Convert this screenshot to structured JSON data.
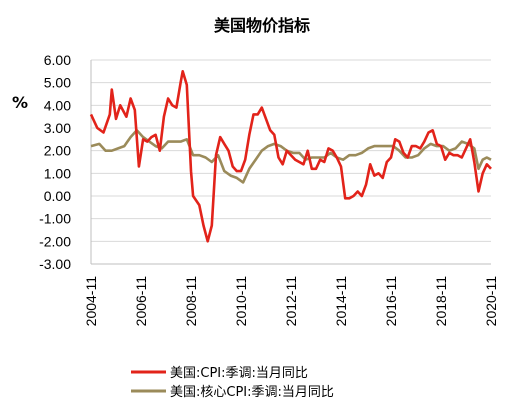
{
  "chart_data": {
    "type": "line",
    "title": "美国物价指标",
    "ylabel": "%",
    "xlabel": "",
    "ylim": [
      -3.0,
      6.0
    ],
    "ytick_labels": [
      "6.00",
      "5.00",
      "4.00",
      "3.00",
      "2.00",
      "1.00",
      "0.00",
      "-1.00",
      "-2.00",
      "-3.00"
    ],
    "ytick_values": [
      6,
      5,
      4,
      3,
      2,
      1,
      0,
      -1,
      -2,
      -3
    ],
    "x_range": [
      "2004-11",
      "2020-11"
    ],
    "xtick_labels": [
      "2004-11",
      "2006-11",
      "2008-11",
      "2010-11",
      "2012-11",
      "2014-11",
      "2016-11",
      "2018-11",
      "2020-11"
    ],
    "grid": "horizontal",
    "legend_position": "bottom",
    "series": [
      {
        "name": "美国:CPI:季调:当月同比",
        "color": "#E2231A",
        "x": [
          "2004-11",
          "2005-02",
          "2005-05",
          "2005-08",
          "2005-09",
          "2005-11",
          "2006-01",
          "2006-04",
          "2006-06",
          "2006-08",
          "2006-10",
          "2006-12",
          "2007-02",
          "2007-04",
          "2007-06",
          "2007-08",
          "2007-10",
          "2007-12",
          "2008-02",
          "2008-04",
          "2008-06",
          "2008-07",
          "2008-09",
          "2008-11",
          "2008-12",
          "2009-03",
          "2009-05",
          "2009-07",
          "2009-09",
          "2009-11",
          "2010-01",
          "2010-03",
          "2010-05",
          "2010-07",
          "2010-09",
          "2010-11",
          "2011-01",
          "2011-03",
          "2011-05",
          "2011-07",
          "2011-09",
          "2011-11",
          "2012-01",
          "2012-03",
          "2012-05",
          "2012-07",
          "2012-09",
          "2012-11",
          "2013-01",
          "2013-03",
          "2013-05",
          "2013-07",
          "2013-09",
          "2013-11",
          "2014-01",
          "2014-03",
          "2014-05",
          "2014-07",
          "2014-09",
          "2014-11",
          "2015-01",
          "2015-03",
          "2015-05",
          "2015-07",
          "2015-09",
          "2015-11",
          "2016-01",
          "2016-03",
          "2016-05",
          "2016-07",
          "2016-09",
          "2016-11",
          "2017-01",
          "2017-03",
          "2017-05",
          "2017-07",
          "2017-09",
          "2017-11",
          "2018-01",
          "2018-03",
          "2018-05",
          "2018-07",
          "2018-09",
          "2018-11",
          "2019-01",
          "2019-03",
          "2019-05",
          "2019-07",
          "2019-09",
          "2019-11",
          "2020-01",
          "2020-03",
          "2020-05",
          "2020-07",
          "2020-09",
          "2020-11"
        ],
        "values": [
          3.6,
          3.0,
          2.8,
          3.6,
          4.7,
          3.4,
          4.0,
          3.5,
          4.3,
          3.8,
          1.3,
          2.5,
          2.4,
          2.6,
          2.7,
          2.0,
          3.5,
          4.3,
          4.0,
          3.9,
          5.0,
          5.5,
          4.9,
          1.1,
          0.0,
          -0.4,
          -1.3,
          -2.0,
          -1.3,
          1.8,
          2.6,
          2.3,
          2.0,
          1.3,
          1.1,
          1.1,
          1.6,
          2.7,
          3.6,
          3.6,
          3.9,
          3.4,
          2.9,
          2.7,
          1.7,
          1.4,
          2.0,
          1.8,
          1.6,
          1.5,
          1.4,
          2.0,
          1.2,
          1.2,
          1.6,
          1.5,
          2.1,
          2.0,
          1.7,
          1.3,
          -0.1,
          -0.1,
          0.0,
          0.2,
          0.0,
          0.5,
          1.4,
          0.9,
          1.0,
          0.8,
          1.5,
          1.7,
          2.5,
          2.4,
          1.9,
          1.7,
          2.2,
          2.2,
          2.1,
          2.4,
          2.8,
          2.9,
          2.3,
          2.2,
          1.6,
          1.9,
          1.8,
          1.8,
          1.7,
          2.1,
          2.5,
          1.5,
          0.2,
          1.0,
          1.4,
          1.2
        ]
      },
      {
        "name": "美国:核心CPI:季调:当月同比",
        "color": "#9B8B5A",
        "x": [
          "2004-11",
          "2005-03",
          "2005-06",
          "2005-09",
          "2005-12",
          "2006-03",
          "2006-06",
          "2006-09",
          "2006-12",
          "2007-03",
          "2007-06",
          "2007-09",
          "2007-12",
          "2008-03",
          "2008-06",
          "2008-09",
          "2008-12",
          "2009-03",
          "2009-06",
          "2009-09",
          "2009-12",
          "2010-03",
          "2010-06",
          "2010-09",
          "2010-12",
          "2011-03",
          "2011-06",
          "2011-09",
          "2011-12",
          "2012-03",
          "2012-06",
          "2012-09",
          "2012-12",
          "2013-03",
          "2013-06",
          "2013-09",
          "2013-12",
          "2014-03",
          "2014-06",
          "2014-09",
          "2014-12",
          "2015-03",
          "2015-06",
          "2015-09",
          "2015-12",
          "2016-03",
          "2016-06",
          "2016-09",
          "2016-12",
          "2017-03",
          "2017-06",
          "2017-09",
          "2017-12",
          "2018-03",
          "2018-06",
          "2018-09",
          "2018-12",
          "2019-03",
          "2019-06",
          "2019-09",
          "2019-12",
          "2020-03",
          "2020-05",
          "2020-07",
          "2020-09",
          "2020-11"
        ],
        "values": [
          2.2,
          2.3,
          2.0,
          2.0,
          2.1,
          2.2,
          2.6,
          2.9,
          2.6,
          2.4,
          2.2,
          2.1,
          2.4,
          2.4,
          2.4,
          2.5,
          1.8,
          1.8,
          1.7,
          1.5,
          1.8,
          1.1,
          0.9,
          0.8,
          0.6,
          1.2,
          1.6,
          2.0,
          2.2,
          2.3,
          2.2,
          2.0,
          1.9,
          1.9,
          1.6,
          1.7,
          1.7,
          1.7,
          1.9,
          1.7,
          1.6,
          1.8,
          1.8,
          1.9,
          2.1,
          2.2,
          2.2,
          2.2,
          2.2,
          2.0,
          1.7,
          1.7,
          1.8,
          2.1,
          2.3,
          2.2,
          2.2,
          2.0,
          2.1,
          2.4,
          2.3,
          2.1,
          1.2,
          1.6,
          1.7,
          1.6
        ]
      }
    ]
  }
}
